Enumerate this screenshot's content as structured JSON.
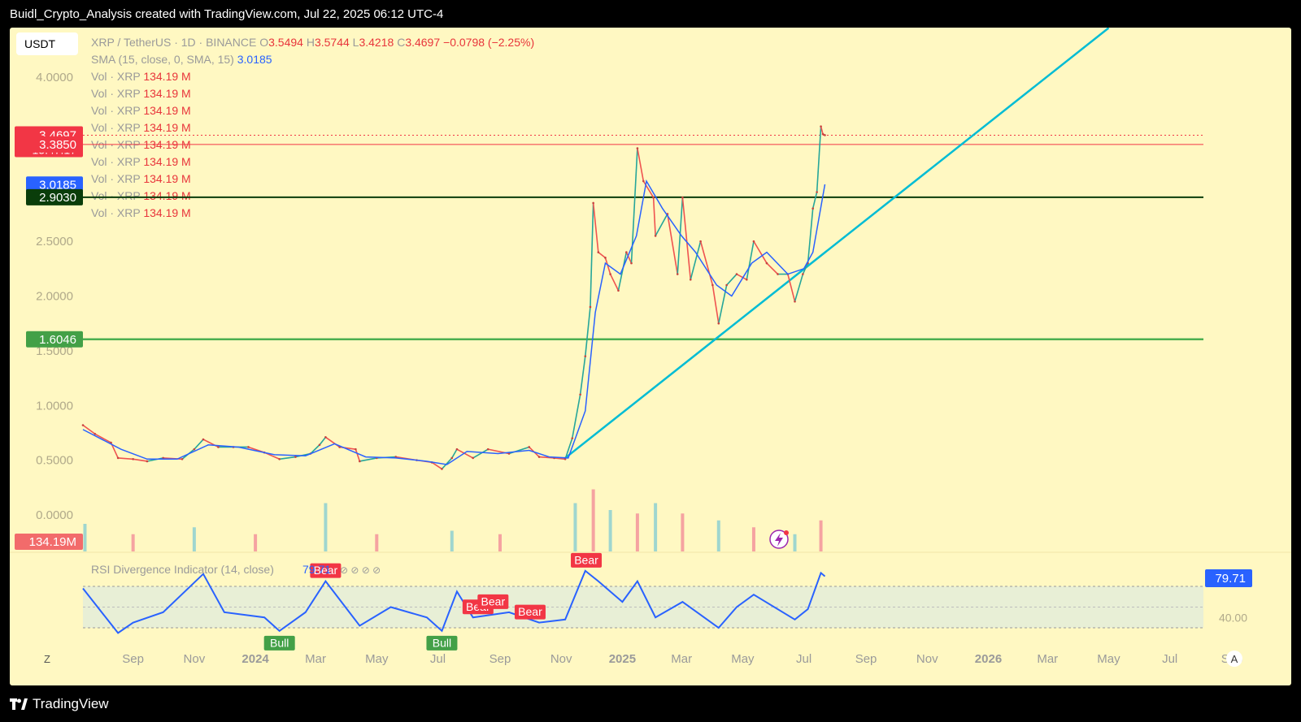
{
  "header": {
    "title": "Buidl_Crypto_Analysis created with TradingView.com, Jul 22, 2025 06:12 UTC-4"
  },
  "footer": {
    "brand": "TradingView"
  },
  "toolbar": {
    "currency": "USDT",
    "left_button": "Z",
    "right_button": "A"
  },
  "legend": {
    "symbol": "XRP / TetherUS · 1D · BINANCE",
    "o_label": "O",
    "o_value": "3.5494",
    "h_label": "H",
    "h_value": "3.5744",
    "l_label": "L",
    "l_value": "3.4218",
    "c_label": "C",
    "c_value": "3.4697",
    "change": "−0.0798 (−2.25%)",
    "sma_label": "SMA (15, close, 0, SMA, 15)",
    "sma_value": "3.0185",
    "vol_label": "Vol · XRP",
    "vol_value": "134.19 M",
    "vol_rows": 9
  },
  "colors": {
    "background": "#fff8c2",
    "up": "#26a69a",
    "down": "#ef5350",
    "sma": "#2962ff",
    "trendline": "#00bcd4",
    "support": "#4caf50",
    "resistance_dark": "#0a3d0a",
    "price_line": "#f23645",
    "rsi": "#2962ff",
    "rsi_band": "#e8efd6"
  },
  "chart_data": [
    {
      "type": "line",
      "title": "XRP / TetherUS · 1D · BINANCE",
      "ylim": [
        0,
        4.0
      ],
      "yticks": [
        "4.0000",
        "2.5000",
        "2.0000",
        "1.5000",
        "1.0000",
        "0.5000",
        "0.0000"
      ],
      "yticks_values": [
        4.0,
        2.5,
        2.0,
        1.5,
        1.0,
        0.5,
        0.0
      ],
      "xticks": [
        "Sep",
        "Nov",
        "2024",
        "Mar",
        "May",
        "Jul",
        "Sep",
        "Nov",
        "2025",
        "Mar",
        "May",
        "Jul",
        "Sep",
        "Nov",
        "2026",
        "Mar",
        "May",
        "Jul",
        "Sep"
      ],
      "xticks_dates": [
        "2023-09-01",
        "2023-11-01",
        "2024-01-01",
        "2024-03-01",
        "2024-05-01",
        "2024-07-01",
        "2024-09-01",
        "2024-11-01",
        "2025-01-01",
        "2025-03-01",
        "2025-05-01",
        "2025-07-01",
        "2025-09-01",
        "2025-11-01",
        "2026-01-01",
        "2026-03-01",
        "2026-05-01",
        "2026-07-01",
        "2026-09-01"
      ],
      "series": [
        {
          "name": "XRP / TetherUS",
          "points": [
            [
              "2023-07-13",
              0.82
            ],
            [
              "2023-07-25",
              0.74
            ],
            [
              "2023-08-10",
              0.66
            ],
            [
              "2023-08-17",
              0.52
            ],
            [
              "2023-09-01",
              0.51
            ],
            [
              "2023-09-15",
              0.49
            ],
            [
              "2023-10-01",
              0.52
            ],
            [
              "2023-10-20",
              0.51
            ],
            [
              "2023-11-01",
              0.6
            ],
            [
              "2023-11-10",
              0.69
            ],
            [
              "2023-11-25",
              0.62
            ],
            [
              "2023-12-10",
              0.62
            ],
            [
              "2023-12-25",
              0.62
            ],
            [
              "2024-01-10",
              0.57
            ],
            [
              "2024-01-25",
              0.51
            ],
            [
              "2024-02-10",
              0.53
            ],
            [
              "2024-02-25",
              0.56
            ],
            [
              "2024-03-05",
              0.64
            ],
            [
              "2024-03-11",
              0.71
            ],
            [
              "2024-03-25",
              0.62
            ],
            [
              "2024-04-10",
              0.6
            ],
            [
              "2024-04-14",
              0.49
            ],
            [
              "2024-05-01",
              0.52
            ],
            [
              "2024-05-20",
              0.53
            ],
            [
              "2024-06-10",
              0.5
            ],
            [
              "2024-06-25",
              0.48
            ],
            [
              "2024-07-05",
              0.42
            ],
            [
              "2024-07-15",
              0.52
            ],
            [
              "2024-07-20",
              0.6
            ],
            [
              "2024-08-05",
              0.52
            ],
            [
              "2024-08-20",
              0.6
            ],
            [
              "2024-09-10",
              0.56
            ],
            [
              "2024-09-30",
              0.62
            ],
            [
              "2024-10-10",
              0.53
            ],
            [
              "2024-10-25",
              0.52
            ],
            [
              "2024-11-05",
              0.51
            ],
            [
              "2024-11-12",
              0.7
            ],
            [
              "2024-11-20",
              1.1
            ],
            [
              "2024-11-25",
              1.45
            ],
            [
              "2024-11-30",
              1.9
            ],
            [
              "2024-12-03",
              2.85
            ],
            [
              "2024-12-08",
              2.4
            ],
            [
              "2024-12-15",
              2.35
            ],
            [
              "2024-12-20",
              2.2
            ],
            [
              "2024-12-28",
              2.05
            ],
            [
              "2025-01-05",
              2.4
            ],
            [
              "2025-01-10",
              2.3
            ],
            [
              "2025-01-16",
              3.35
            ],
            [
              "2025-01-22",
              3.05
            ],
            [
              "2025-02-01",
              2.9
            ],
            [
              "2025-02-03",
              2.55
            ],
            [
              "2025-02-15",
              2.75
            ],
            [
              "2025-02-25",
              2.2
            ],
            [
              "2025-03-02",
              2.9
            ],
            [
              "2025-03-10",
              2.15
            ],
            [
              "2025-03-20",
              2.5
            ],
            [
              "2025-04-01",
              2.1
            ],
            [
              "2025-04-07",
              1.75
            ],
            [
              "2025-04-15",
              2.1
            ],
            [
              "2025-04-25",
              2.2
            ],
            [
              "2025-05-05",
              2.15
            ],
            [
              "2025-05-12",
              2.5
            ],
            [
              "2025-05-25",
              2.3
            ],
            [
              "2025-06-05",
              2.2
            ],
            [
              "2025-06-15",
              2.2
            ],
            [
              "2025-06-22",
              1.95
            ],
            [
              "2025-06-30",
              2.2
            ],
            [
              "2025-07-05",
              2.3
            ],
            [
              "2025-07-10",
              2.8
            ],
            [
              "2025-07-14",
              2.95
            ],
            [
              "2025-07-18",
              3.55
            ],
            [
              "2025-07-20",
              3.48
            ],
            [
              "2025-07-22",
              3.47
            ]
          ]
        },
        {
          "name": "SMA (15, close, 0, SMA, 15)",
          "points": [
            [
              "2023-07-13",
              0.78
            ],
            [
              "2023-08-20",
              0.6
            ],
            [
              "2023-09-15",
              0.51
            ],
            [
              "2023-10-15",
              0.51
            ],
            [
              "2023-11-15",
              0.64
            ],
            [
              "2023-12-15",
              0.62
            ],
            [
              "2024-01-20",
              0.55
            ],
            [
              "2024-02-20",
              0.54
            ],
            [
              "2024-03-20",
              0.65
            ],
            [
              "2024-04-20",
              0.53
            ],
            [
              "2024-05-20",
              0.52
            ],
            [
              "2024-06-20",
              0.49
            ],
            [
              "2024-07-10",
              0.46
            ],
            [
              "2024-07-30",
              0.58
            ],
            [
              "2024-08-30",
              0.56
            ],
            [
              "2024-09-30",
              0.59
            ],
            [
              "2024-10-20",
              0.53
            ],
            [
              "2024-11-08",
              0.52
            ],
            [
              "2024-11-25",
              0.95
            ],
            [
              "2024-12-05",
              1.85
            ],
            [
              "2024-12-15",
              2.3
            ],
            [
              "2024-12-30",
              2.2
            ],
            [
              "2025-01-15",
              2.55
            ],
            [
              "2025-01-25",
              3.05
            ],
            [
              "2025-02-10",
              2.8
            ],
            [
              "2025-03-01",
              2.55
            ],
            [
              "2025-03-15",
              2.4
            ],
            [
              "2025-04-05",
              2.1
            ],
            [
              "2025-04-20",
              2.0
            ],
            [
              "2025-05-10",
              2.3
            ],
            [
              "2025-05-25",
              2.4
            ],
            [
              "2025-06-15",
              2.2
            ],
            [
              "2025-07-01",
              2.25
            ],
            [
              "2025-07-10",
              2.4
            ],
            [
              "2025-07-22",
              3.02
            ]
          ]
        },
        {
          "name": "Trendline",
          "points": [
            [
              "2024-11-05",
              0.52
            ],
            [
              "2026-05-01",
              4.45
            ]
          ]
        }
      ],
      "horizontal_levels": [
        {
          "value": 3.4697,
          "label": "3.4697",
          "time_label": "13:47:17",
          "style": "dotted",
          "color": "#f23645"
        },
        {
          "value": 3.385,
          "label": "3.3850",
          "style": "solid",
          "color": "#f23645"
        },
        {
          "value": 3.0185,
          "label": "3.0185",
          "style": "none",
          "color": "#2962ff"
        },
        {
          "value": 2.903,
          "label": "2.9030",
          "style": "solid",
          "color": "#0a3d0a"
        },
        {
          "value": 1.6046,
          "label": "1.6046",
          "style": "solid",
          "color": "#4caf50"
        }
      ],
      "last_price": 3.4697,
      "grid": false,
      "legend": "top-left"
    },
    {
      "type": "bar",
      "title": "Vol · XRP",
      "last_value_label": "134.19M",
      "series": [
        {
          "name": "Vol · XRP",
          "points": [
            [
              "2023-07-15",
              40
            ],
            [
              "2023-09-01",
              25
            ],
            [
              "2023-11-01",
              35
            ],
            [
              "2024-01-01",
              25
            ],
            [
              "2024-03-11",
              70
            ],
            [
              "2024-05-01",
              25
            ],
            [
              "2024-07-15",
              30
            ],
            [
              "2024-09-01",
              25
            ],
            [
              "2024-11-15",
              70
            ],
            [
              "2024-12-03",
              90
            ],
            [
              "2024-12-20",
              60
            ],
            [
              "2025-01-16",
              55
            ],
            [
              "2025-02-03",
              70
            ],
            [
              "2025-03-02",
              55
            ],
            [
              "2025-04-07",
              45
            ],
            [
              "2025-05-12",
              35
            ],
            [
              "2025-06-22",
              25
            ],
            [
              "2025-07-18",
              45
            ]
          ]
        }
      ]
    },
    {
      "type": "line",
      "title": "RSI Divergence Indicator (14, close)",
      "value_label": "79.71",
      "ylim": [
        20,
        85
      ],
      "yticks": [
        "40.00"
      ],
      "yticks_values": [
        40
      ],
      "band": [
        30,
        70
      ],
      "series": [
        {
          "name": "RSI Divergence Indicator (14, close)",
          "points": [
            [
              "2023-07-13",
              68
            ],
            [
              "2023-08-17",
              25
            ],
            [
              "2023-09-01",
              35
            ],
            [
              "2023-10-01",
              45
            ],
            [
              "2023-11-10",
              82
            ],
            [
              "2023-12-01",
              45
            ],
            [
              "2024-01-10",
              40
            ],
            [
              "2024-01-25",
              27
            ],
            [
              "2024-02-20",
              45
            ],
            [
              "2024-03-11",
              75
            ],
            [
              "2024-04-14",
              32
            ],
            [
              "2024-05-15",
              50
            ],
            [
              "2024-06-20",
              40
            ],
            [
              "2024-07-05",
              27
            ],
            [
              "2024-07-20",
              65
            ],
            [
              "2024-08-05",
              40
            ],
            [
              "2024-09-10",
              45
            ],
            [
              "2024-10-10",
              35
            ],
            [
              "2024-11-05",
              38
            ],
            [
              "2024-11-25",
              85
            ],
            [
              "2024-12-08",
              75
            ],
            [
              "2025-01-01",
              55
            ],
            [
              "2025-01-16",
              75
            ],
            [
              "2025-02-03",
              40
            ],
            [
              "2025-03-02",
              55
            ],
            [
              "2025-04-07",
              30
            ],
            [
              "2025-04-25",
              50
            ],
            [
              "2025-05-12",
              62
            ],
            [
              "2025-06-22",
              38
            ],
            [
              "2025-07-05",
              48
            ],
            [
              "2025-07-18",
              83
            ],
            [
              "2025-07-22",
              79.71
            ]
          ]
        }
      ],
      "annotations": [
        {
          "text": "Bear",
          "date": "2024-03-11",
          "kind": "bear"
        },
        {
          "text": "Bear",
          "date": "2024-08-10",
          "kind": "bear"
        },
        {
          "text": "Bear",
          "date": "2024-08-25",
          "kind": "bear"
        },
        {
          "text": "Bear",
          "date": "2024-10-01",
          "kind": "bear"
        },
        {
          "text": "Bear",
          "date": "2024-11-26",
          "kind": "bear"
        },
        {
          "text": "Bull",
          "date": "2024-01-25",
          "kind": "bull"
        },
        {
          "text": "Bull",
          "date": "2024-07-05",
          "kind": "bull"
        }
      ]
    }
  ]
}
